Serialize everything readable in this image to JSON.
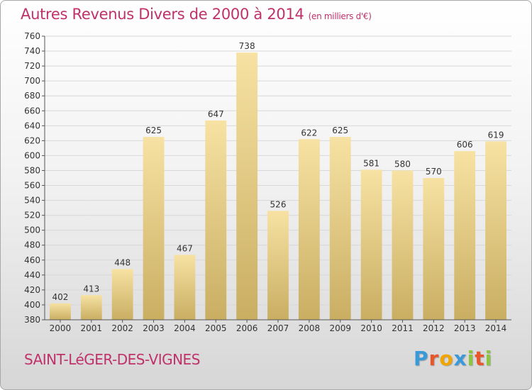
{
  "header": {
    "title": "Autres Revenus Divers de 2000 à 2014",
    "unit": "(en milliers d'€)"
  },
  "footer": {
    "place": "SAINT-LéGER-DES-VIGNES",
    "logo_letters": [
      "P",
      "r",
      "o",
      "x",
      "i",
      "t",
      "i"
    ],
    "logo_colors": [
      "#3a9ad9",
      "#e8562a",
      "#f0a500",
      "#3a9ad9",
      "#8cc63f",
      "#e8562a",
      "#8cc63f"
    ]
  },
  "colors": {
    "title": "#c0316a",
    "bar_light": "#f7e2a3",
    "bar_dark": "#c9ae62",
    "grid": "#d8d8d8"
  },
  "chart_data": {
    "type": "bar",
    "categories": [
      "2000",
      "2001",
      "2002",
      "2003",
      "2004",
      "2005",
      "2006",
      "2007",
      "2008",
      "2009",
      "2010",
      "2011",
      "2012",
      "2013",
      "2014"
    ],
    "values": [
      402,
      413,
      448,
      625,
      467,
      647,
      738,
      526,
      622,
      625,
      581,
      580,
      570,
      606,
      619
    ],
    "ylim": [
      380,
      760
    ],
    "ytick_step": 20,
    "grid": true
  }
}
